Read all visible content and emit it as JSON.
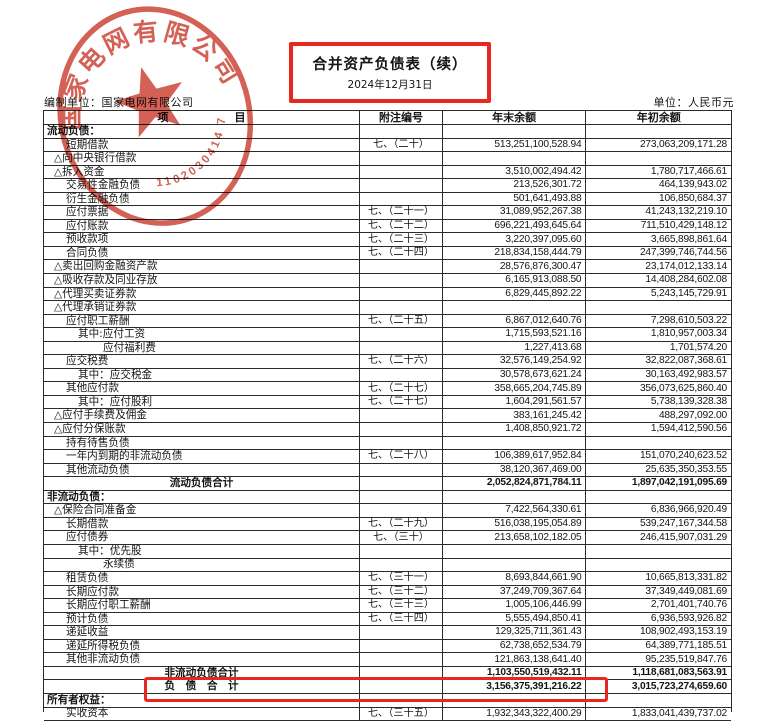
{
  "page": {
    "prepared_by": "编制单位：国家电网有限公司",
    "unit_label": "单位：人民币元",
    "title": "合并资产负债表（续）",
    "date": "2024年12月31日"
  },
  "stamp": {
    "company_arc_text": "国家电网有限公司",
    "serial_number": "1102030414 7",
    "color": "#c9392b"
  },
  "accents": {
    "highlight_red": "#e8281e",
    "grid_line": "#2b2b2b"
  },
  "table": {
    "headers": {
      "item": "项　　　　　　目",
      "note": "附注编号",
      "year_end": "年末余额",
      "year_start": "年初余额"
    },
    "rows": [
      {
        "type": "sec",
        "indent": 0,
        "item": "流动负债：",
        "note": "",
        "year_end": "",
        "year_start": ""
      },
      {
        "indent": 2,
        "item": "短期借款",
        "note": "七、（二十）",
        "year_end": "513,251,100,528.94",
        "year_start": "273,063,209,171.28"
      },
      {
        "indent": 1,
        "item": "△向中央银行借款",
        "note": "",
        "year_end": "",
        "year_start": ""
      },
      {
        "indent": 1,
        "item": "△拆入资金",
        "note": "",
        "year_end": "3,510,002,494.42",
        "year_start": "1,780,717,466.61"
      },
      {
        "indent": 2,
        "item": "交易性金融负债",
        "note": "",
        "year_end": "213,526,301.72",
        "year_start": "464,139,943.02"
      },
      {
        "indent": 2,
        "item": "衍生金融负债",
        "note": "",
        "year_end": "501,641,493.88",
        "year_start": "106,850,684.37"
      },
      {
        "indent": 2,
        "item": "应付票据",
        "note": "七、（二十一）",
        "year_end": "31,089,952,267.38",
        "year_start": "41,243,132,219.10"
      },
      {
        "indent": 2,
        "item": "应付账款",
        "note": "七、（二十二）",
        "year_end": "696,221,493,645.64",
        "year_start": "711,510,429,148.12"
      },
      {
        "indent": 2,
        "item": "预收款项",
        "note": "七、（二十三）",
        "year_end": "3,220,397,095.60",
        "year_start": "3,665,898,861.64"
      },
      {
        "indent": 2,
        "item": "合同负债",
        "note": "七、（二十四）",
        "year_end": "218,834,158,444.79",
        "year_start": "247,399,746,744.56"
      },
      {
        "indent": 1,
        "item": "△卖出回购金融资产款",
        "note": "",
        "year_end": "28,576,876,300.47",
        "year_start": "23,174,012,133.14"
      },
      {
        "indent": 1,
        "item": "△吸收存款及同业存放",
        "note": "",
        "year_end": "6,165,913,088.50",
        "year_start": "14,408,284,602.08"
      },
      {
        "indent": 1,
        "item": "△代理买卖证券款",
        "note": "",
        "year_end": "6,829,445,892.22",
        "year_start": "5,243,145,729.91"
      },
      {
        "indent": 1,
        "item": "△代理承销证券款",
        "note": "",
        "year_end": "",
        "year_start": ""
      },
      {
        "indent": 2,
        "item": "应付职工薪酬",
        "note": "七、（二十五）",
        "year_end": "6,867,012,640.76",
        "year_start": "7,298,610,503.22"
      },
      {
        "indent": 3,
        "item": "其中:应付工资",
        "note": "",
        "year_end": "1,715,593,521.16",
        "year_start": "1,810,957,003.34"
      },
      {
        "indent": 4,
        "item": "应付福利费",
        "note": "",
        "year_end": "1,227,413.68",
        "year_start": "1,701,574.20"
      },
      {
        "indent": 2,
        "item": "应交税费",
        "note": "七、（二十六）",
        "year_end": "32,576,149,254.92",
        "year_start": "32,822,087,368.61"
      },
      {
        "indent": 3,
        "item": "其中：应交税金",
        "note": "",
        "year_end": "30,578,673,621.24",
        "year_start": "30,163,492,983.57"
      },
      {
        "indent": 2,
        "item": "其他应付款",
        "note": "七、（二十七）",
        "year_end": "358,665,204,745.89",
        "year_start": "356,073,625,860.40"
      },
      {
        "indent": 3,
        "item": "其中：应付股利",
        "note": "七、（二十七）",
        "year_end": "1,604,291,561.57",
        "year_start": "5,738,139,328.38"
      },
      {
        "indent": 1,
        "item": "△应付手续费及佣金",
        "note": "",
        "year_end": "383,161,245.42",
        "year_start": "488,297,092.00"
      },
      {
        "indent": 1,
        "item": "△应付分保账款",
        "note": "",
        "year_end": "1,408,850,921.72",
        "year_start": "1,594,412,590.56"
      },
      {
        "indent": 2,
        "item": "持有待售负债",
        "note": "",
        "year_end": "",
        "year_start": ""
      },
      {
        "indent": 2,
        "item": "一年内到期的非流动负债",
        "note": "七、（二十八）",
        "year_end": "106,389,617,952.84",
        "year_start": "151,070,240,623.52"
      },
      {
        "indent": 2,
        "item": "其他流动负债",
        "note": "",
        "year_end": "38,120,367,469.00",
        "year_start": "25,635,350,353.55"
      },
      {
        "type": "total",
        "indent": 0,
        "item": "流动负债合计",
        "note": "",
        "year_end": "2,052,824,871,784.11",
        "year_start": "1,897,042,191,095.69"
      },
      {
        "type": "sec",
        "indent": 0,
        "item": "非流动负债：",
        "note": "",
        "year_end": "",
        "year_start": ""
      },
      {
        "indent": 1,
        "item": "△保险合同准备金",
        "note": "",
        "year_end": "7,422,564,330.61",
        "year_start": "6,836,966,920.49"
      },
      {
        "indent": 2,
        "item": "长期借款",
        "note": "七、（二十九）",
        "year_end": "516,038,195,054.89",
        "year_start": "539,247,167,344.58"
      },
      {
        "indent": 2,
        "item": "应付债券",
        "note": "七、（三十）",
        "year_end": "213,658,102,182.05",
        "year_start": "246,415,907,031.29"
      },
      {
        "indent": 3,
        "item": "其中：优先股",
        "note": "",
        "year_end": "",
        "year_start": ""
      },
      {
        "indent": 4,
        "item": "永续债",
        "note": "",
        "year_end": "",
        "year_start": ""
      },
      {
        "indent": 2,
        "item": "租赁负债",
        "note": "七、（三十一）",
        "year_end": "8,693,844,661.90",
        "year_start": "10,665,813,331.82"
      },
      {
        "indent": 2,
        "item": "长期应付款",
        "note": "七、（三十二）",
        "year_end": "37,249,709,367.64",
        "year_start": "37,349,449,081.69"
      },
      {
        "indent": 2,
        "item": "长期应付职工薪酬",
        "note": "七、（三十三）",
        "year_end": "1,005,106,446.99",
        "year_start": "2,701,401,740.76"
      },
      {
        "indent": 2,
        "item": "预计负债",
        "note": "七、（三十四）",
        "year_end": "5,555,494,850.41",
        "year_start": "6,936,593,926.82"
      },
      {
        "indent": 2,
        "item": "递延收益",
        "note": "",
        "year_end": "129,325,711,361.43",
        "year_start": "108,902,493,153.19"
      },
      {
        "indent": 2,
        "item": "递延所得税负债",
        "note": "",
        "year_end": "62,738,652,534.79",
        "year_start": "64,389,771,185.51"
      },
      {
        "indent": 2,
        "item": "其他非流动负债",
        "note": "",
        "year_end": "121,863,138,641.40",
        "year_start": "95,235,519,847.76"
      },
      {
        "type": "total",
        "indent": 0,
        "item": "非流动负债合计",
        "note": "",
        "year_end": "1,103,550,519,432.11",
        "year_start": "1,118,681,083,563.91"
      },
      {
        "type": "total",
        "indent": 0,
        "item": "负　债　合　计",
        "note": "",
        "year_end": "3,156,375,391,216.22",
        "year_start": "3,015,723,274,659.60"
      },
      {
        "type": "sec",
        "indent": 0,
        "item": "所有者权益：",
        "note": "",
        "year_end": "",
        "year_start": ""
      },
      {
        "indent": 2,
        "item": "实收资本",
        "note": "七、（三十五）",
        "year_end": "1,932,343,322,400.29",
        "year_start": "1,833,041,439,737.02"
      }
    ]
  }
}
